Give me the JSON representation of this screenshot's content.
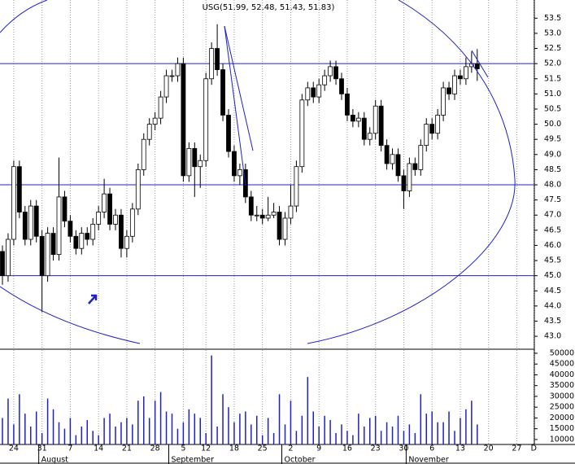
{
  "chart_data": {
    "type": "candlestick",
    "title": "USG(51.99, 52.48, 51.43, 51.83)",
    "categories": [
      null,
      null,
      "24",
      null,
      null,
      null,
      null,
      "31",
      null,
      null,
      null,
      null,
      "7",
      null,
      null,
      null,
      null,
      "14",
      null,
      null,
      null,
      null,
      "21",
      null,
      null,
      null,
      null,
      "28",
      null,
      null,
      null,
      null,
      "5",
      null,
      null,
      null,
      "12",
      null,
      null,
      null,
      null,
      "18",
      null,
      null,
      null,
      null,
      "25",
      null,
      null,
      null,
      null,
      "2",
      null,
      null,
      null,
      null,
      "9",
      null,
      null,
      null,
      null,
      "16",
      null,
      null,
      null,
      null,
      "23",
      null,
      null,
      null,
      null,
      "30",
      null,
      null,
      null,
      null,
      "6",
      null,
      null,
      null,
      null,
      "13",
      null,
      null,
      null,
      null,
      "20",
      null,
      null,
      null,
      null,
      "27",
      null,
      null,
      "D"
    ],
    "months": [
      null,
      null,
      null,
      null,
      null,
      null,
      null,
      "August",
      null,
      null,
      null,
      null,
      null,
      null,
      null,
      null,
      null,
      null,
      null,
      null,
      null,
      null,
      null,
      null,
      null,
      null,
      null,
      null,
      null,
      null,
      "September",
      null,
      null,
      null,
      null,
      null,
      null,
      null,
      null,
      null,
      null,
      null,
      null,
      null,
      null,
      null,
      null,
      null,
      null,
      null,
      "October",
      null,
      null,
      null,
      null,
      null,
      null,
      null,
      null,
      null,
      null,
      null,
      null,
      null,
      null,
      null,
      null,
      null,
      null,
      null,
      null,
      null,
      "November",
      null,
      null,
      null,
      null,
      null,
      null,
      null,
      null,
      null,
      null,
      null,
      null,
      null,
      null,
      null,
      null,
      null,
      null,
      null,
      null,
      null,
      null
    ],
    "open": [
      45.8,
      45.0,
      46.2,
      48.6,
      47.1,
      46.2,
      47.3,
      46.3,
      45.0,
      46.4,
      45.7,
      47.6,
      46.8,
      46.3,
      45.9,
      46.4,
      46.2,
      46.7,
      47.1,
      47.7,
      46.7,
      47.0,
      45.9,
      46.3,
      47.2,
      48.5,
      49.5,
      50.0,
      50.2,
      50.9,
      51.6,
      51.6,
      52.0,
      48.3,
      49.2,
      48.6,
      48.8,
      51.5,
      52.5,
      51.8,
      50.3,
      49.1,
      48.3,
      48.5,
      47.6,
      47.0,
      47.0,
      46.9,
      47.0,
      47.1,
      46.2,
      46.9,
      47.3,
      48.6,
      50.8,
      51.2,
      50.9,
      51.3,
      51.6,
      51.9,
      51.5,
      51.0,
      50.3,
      50.1,
      50.2,
      49.5,
      49.7,
      50.6,
      49.3,
      48.7,
      49.0,
      48.3,
      47.8,
      48.7,
      48.5,
      49.3,
      50.0,
      49.7,
      50.3,
      51.2,
      51.0,
      51.6,
      51.5,
      51.9,
      51.99,
      null,
      null,
      null,
      null,
      null,
      null,
      null,
      null,
      null,
      null
    ],
    "high": [
      46.0,
      46.4,
      48.8,
      48.8,
      47.3,
      47.5,
      47.5,
      46.5,
      46.6,
      46.6,
      48.9,
      47.8,
      47.0,
      46.5,
      46.6,
      46.6,
      46.9,
      47.3,
      48.2,
      47.9,
      47.2,
      47.2,
      46.5,
      47.4,
      48.7,
      49.7,
      50.2,
      50.4,
      51.1,
      51.8,
      51.8,
      52.2,
      52.2,
      49.4,
      49.4,
      49.0,
      51.7,
      52.7,
      53.3,
      52.0,
      50.5,
      49.3,
      48.7,
      48.7,
      47.8,
      47.3,
      47.2,
      47.6,
      47.4,
      47.3,
      47.1,
      48.0,
      48.8,
      51.0,
      51.4,
      51.4,
      51.5,
      51.8,
      52.1,
      52.1,
      51.7,
      51.2,
      50.5,
      50.4,
      50.4,
      49.9,
      50.8,
      50.8,
      49.5,
      49.2,
      49.2,
      48.5,
      48.9,
      48.9,
      49.5,
      50.2,
      50.2,
      50.5,
      51.4,
      51.4,
      51.8,
      51.8,
      52.2,
      52.4,
      52.48,
      null,
      null,
      null,
      null,
      null,
      null,
      null,
      null,
      null,
      null
    ],
    "low": [
      44.7,
      44.8,
      46.0,
      46.9,
      46.0,
      46.0,
      46.1,
      43.8,
      44.8,
      45.5,
      45.5,
      46.6,
      46.1,
      45.7,
      45.7,
      46.0,
      46.0,
      46.5,
      46.9,
      46.5,
      46.5,
      45.6,
      45.6,
      46.1,
      47.0,
      48.3,
      49.3,
      49.8,
      50.0,
      50.7,
      51.4,
      51.4,
      48.1,
      48.1,
      47.6,
      47.9,
      48.6,
      51.3,
      51.6,
      50.1,
      48.9,
      48.1,
      48.0,
      47.4,
      46.8,
      46.8,
      46.7,
      46.8,
      46.9,
      46.0,
      46.0,
      46.7,
      47.1,
      48.4,
      50.6,
      50.7,
      50.7,
      51.1,
      51.4,
      51.3,
      50.8,
      50.1,
      49.9,
      49.9,
      49.3,
      49.3,
      49.5,
      49.1,
      48.5,
      48.5,
      48.1,
      47.2,
      47.6,
      48.3,
      48.3,
      49.1,
      49.5,
      49.5,
      50.1,
      50.8,
      50.8,
      51.3,
      51.3,
      51.7,
      51.43,
      null,
      null,
      null,
      null,
      null,
      null,
      null,
      null,
      null,
      null
    ],
    "close": [
      45.0,
      46.2,
      48.6,
      47.1,
      46.2,
      47.3,
      46.3,
      45.0,
      46.4,
      45.7,
      47.6,
      46.8,
      46.3,
      45.9,
      46.4,
      46.2,
      46.7,
      47.1,
      47.7,
      46.7,
      47.0,
      45.9,
      46.3,
      47.2,
      48.5,
      49.5,
      50.0,
      50.2,
      50.9,
      51.6,
      51.6,
      52.0,
      48.3,
      49.2,
      48.6,
      48.8,
      51.5,
      52.5,
      51.8,
      50.3,
      49.1,
      48.3,
      48.5,
      47.6,
      47.0,
      47.0,
      46.9,
      47.0,
      47.1,
      46.2,
      46.9,
      47.3,
      48.6,
      50.8,
      51.2,
      50.9,
      51.3,
      51.6,
      51.9,
      51.5,
      51.0,
      50.3,
      50.1,
      50.2,
      49.5,
      49.7,
      50.6,
      49.3,
      48.7,
      49.0,
      48.3,
      47.8,
      48.7,
      48.5,
      49.3,
      50.0,
      49.7,
      50.3,
      51.2,
      51.0,
      51.6,
      51.5,
      51.9,
      52.0,
      51.83,
      null,
      null,
      null,
      null,
      null,
      null,
      null,
      null,
      null,
      null
    ],
    "volume": [
      20000,
      29000,
      17000,
      31000,
      22000,
      16000,
      23000,
      13000,
      29000,
      24000,
      18000,
      15000,
      20000,
      12000,
      16000,
      19000,
      14000,
      12000,
      20000,
      22000,
      16000,
      18000,
      20000,
      17000,
      28000,
      30000,
      20000,
      28000,
      32000,
      23000,
      22000,
      15000,
      18000,
      24000,
      22000,
      20000,
      13000,
      49000,
      16000,
      31000,
      25000,
      18000,
      22000,
      23000,
      17000,
      21000,
      12000,
      20000,
      13000,
      31000,
      17000,
      28000,
      14000,
      21000,
      39000,
      23000,
      16000,
      21000,
      19000,
      13000,
      17000,
      14000,
      12000,
      22000,
      16000,
      20000,
      21000,
      14000,
      18000,
      16000,
      21000,
      14000,
      17000,
      13000,
      31000,
      22000,
      23000,
      18000,
      18000,
      23000,
      14000,
      20000,
      24000,
      28000,
      17000,
      null,
      null,
      null,
      null,
      null,
      null,
      null,
      null,
      null,
      null
    ],
    "ylim": [
      42.6,
      54.1
    ],
    "yticks": [
      {
        "value": 43.0,
        "label": "43.0"
      },
      43.5,
      {
        "value": 44.0,
        "label": "44.0"
      },
      44.5,
      {
        "value": 45.0,
        "label": "45.0"
      },
      45.5,
      {
        "value": 46.0,
        "label": "46.0"
      },
      46.5,
      {
        "value": 47.0,
        "label": "47.0"
      },
      47.5,
      {
        "value": 48.0,
        "label": "48.0"
      },
      48.5,
      {
        "value": 49.0,
        "label": "49.0"
      },
      49.5,
      {
        "value": 50.0,
        "label": "50.0"
      },
      50.5,
      {
        "value": 51.0,
        "label": "51.0"
      },
      51.5,
      {
        "value": 52.0,
        "label": "52.0"
      },
      52.5,
      {
        "value": 53.0,
        "label": "53.0"
      },
      53.5
    ],
    "y2lim": [
      7700,
      51500
    ],
    "y2ticks": [
      10000,
      15000,
      20000,
      25000,
      30000,
      35000,
      40000,
      45000,
      50000
    ],
    "hlines": [
      52.0,
      48.0,
      45.0
    ],
    "grid": true,
    "up_color": "#ffffff",
    "down_color": "#000000",
    "line_color": "#2020c8"
  }
}
